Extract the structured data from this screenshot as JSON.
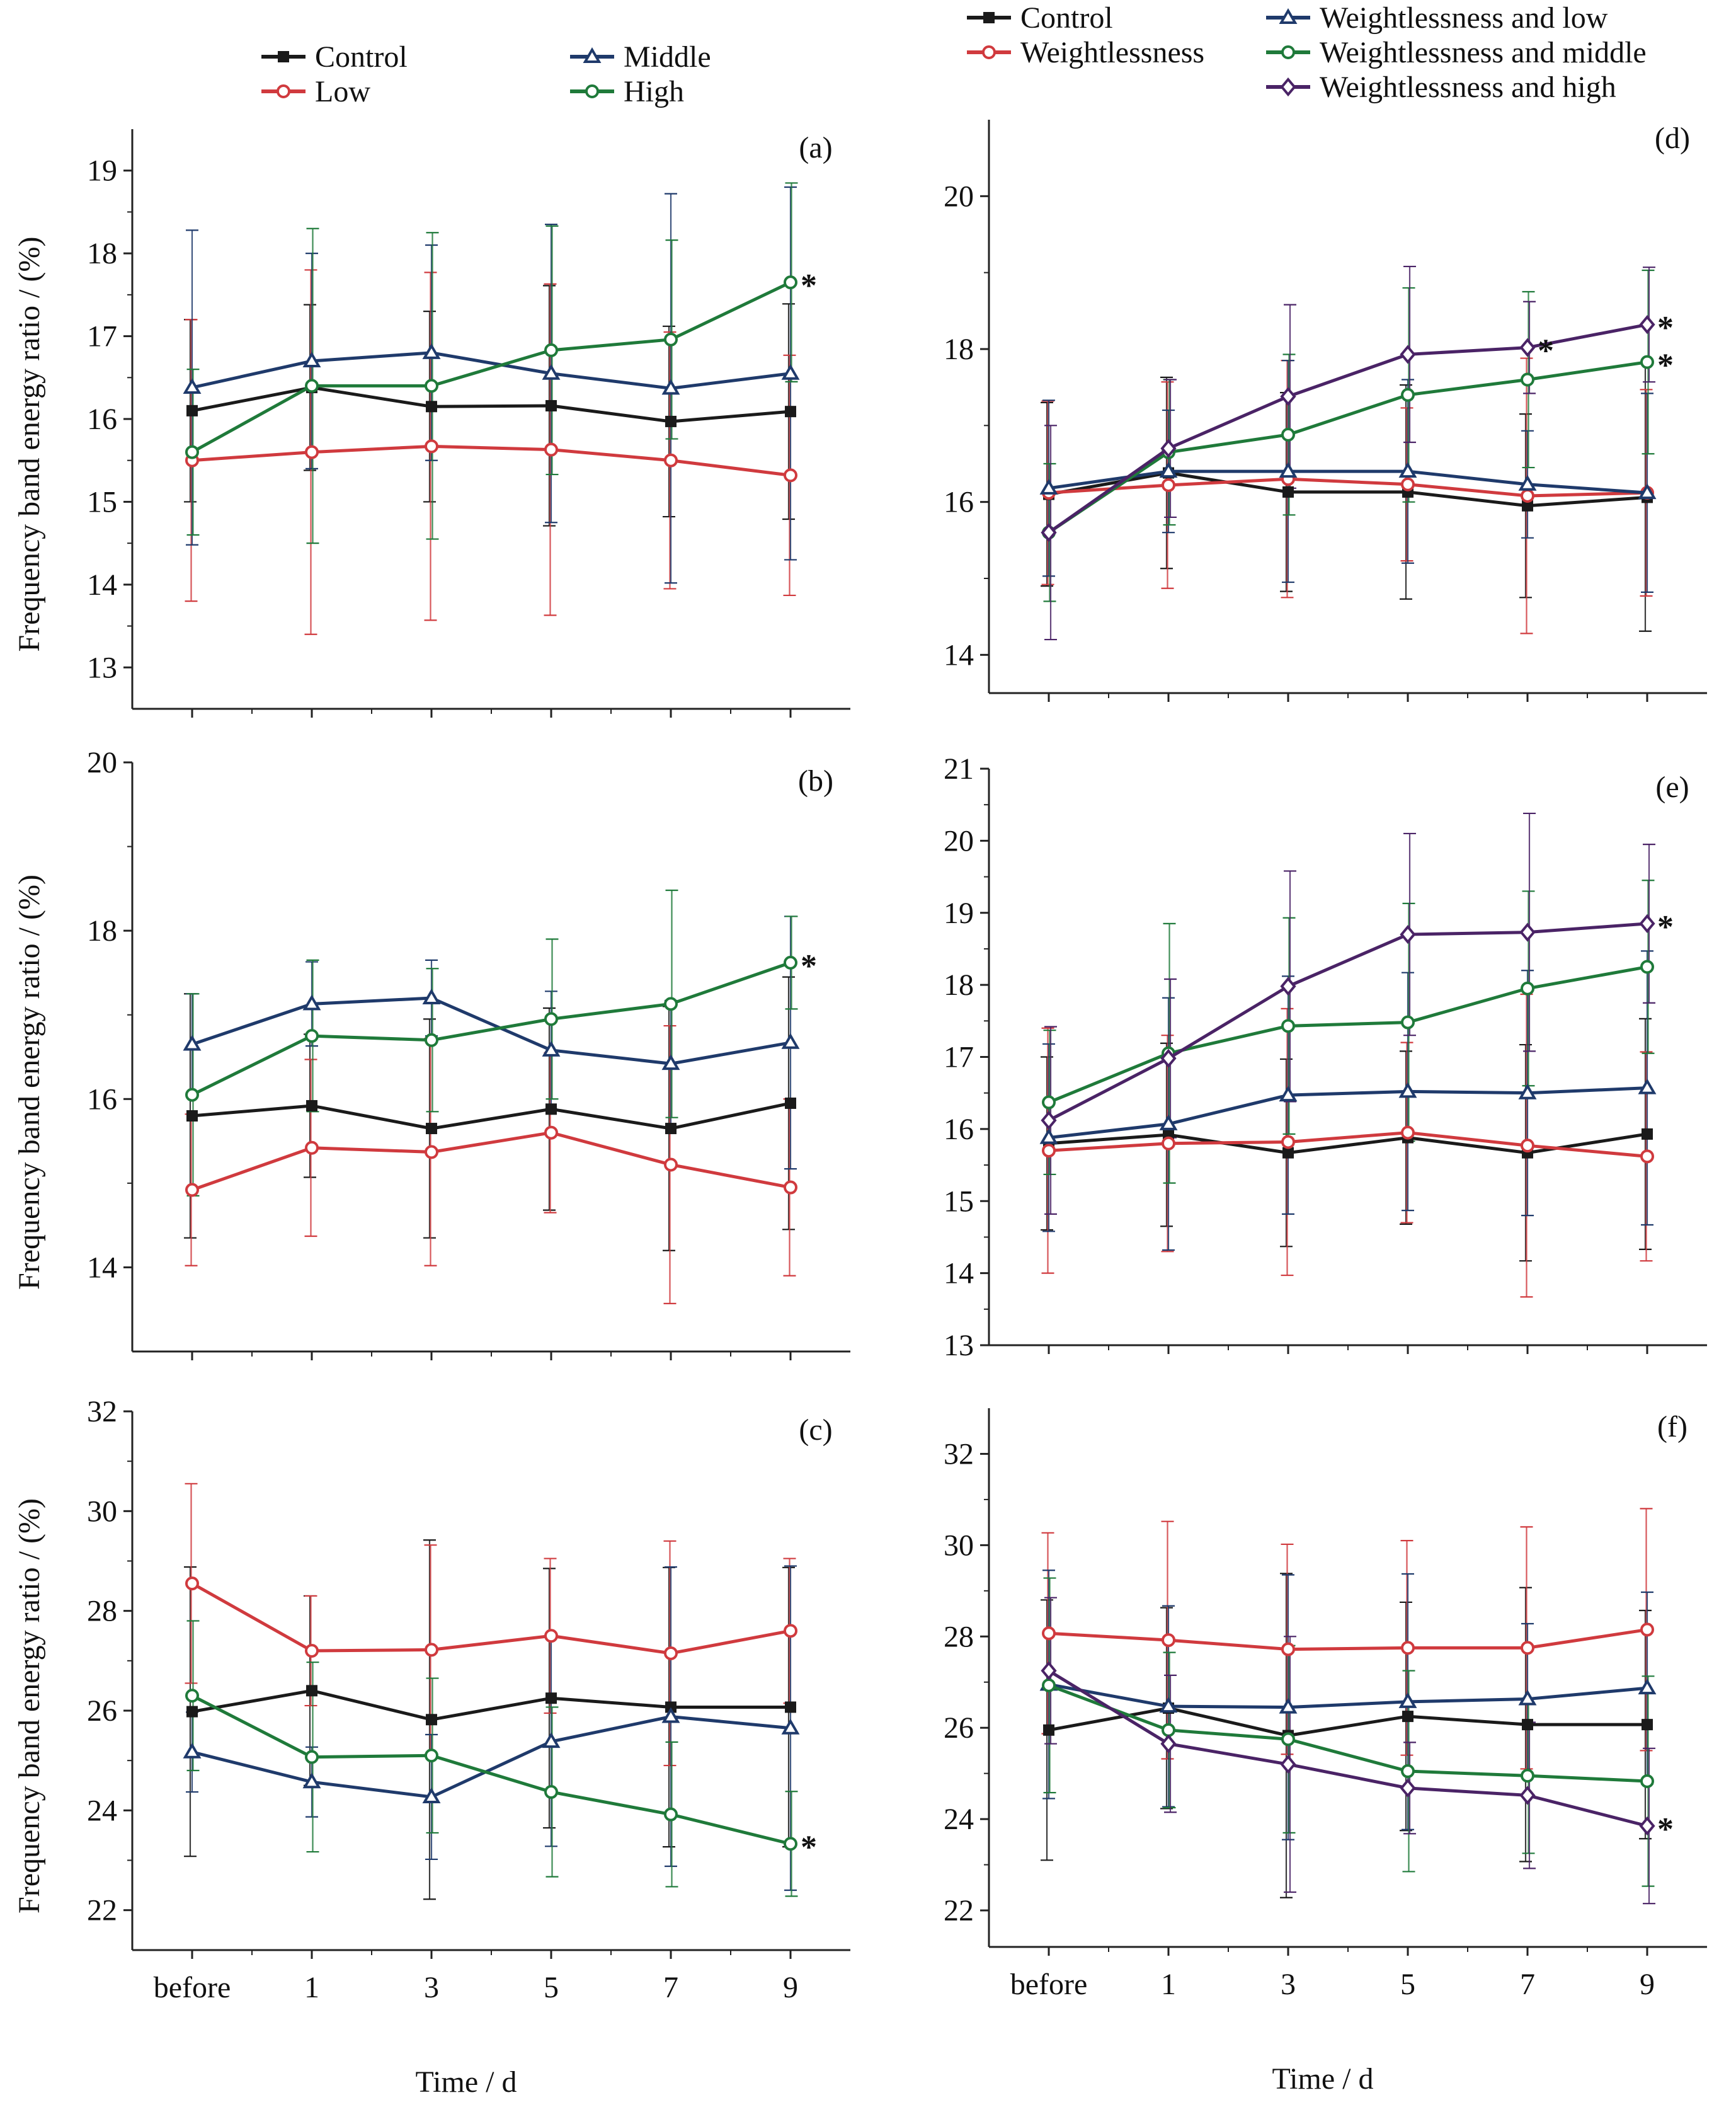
{
  "legend_left": {
    "entries": [
      {
        "label": "Control",
        "color": "#1a1a1a",
        "marker": "square"
      },
      {
        "label": "Low",
        "color": "#d03a3e",
        "marker": "circle"
      },
      {
        "label": "Middle",
        "color": "#1f3a6b",
        "marker": "triangle"
      },
      {
        "label": "High",
        "color": "#1f7a3a",
        "marker": "circle"
      }
    ]
  },
  "legend_right": {
    "entries": [
      {
        "label": "Control",
        "color": "#1a1a1a",
        "marker": "square"
      },
      {
        "label": "Weightlessness",
        "color": "#d03a3e",
        "marker": "circle"
      },
      {
        "label": "Weightlessness and low",
        "color": "#1f3a6b",
        "marker": "triangle"
      },
      {
        "label": "Weightlessness and middle",
        "color": "#1f7a3a",
        "marker": "circle"
      },
      {
        "label": "Weightlessness and high",
        "color": "#4a2366",
        "marker": "diamond"
      }
    ]
  },
  "chart_data": [
    {
      "panel": "(a)",
      "type": "line",
      "categories": [
        "before",
        "1",
        "3",
        "5",
        "7",
        "9"
      ],
      "ylabel": "Frequency band energy ratio / (%)",
      "ylim": [
        12.5,
        19.5
      ],
      "yticks": [
        13,
        14,
        15,
        16,
        17,
        18,
        19
      ],
      "series": [
        {
          "name": "Control",
          "values": [
            16.1,
            16.38,
            16.15,
            16.16,
            15.97,
            16.09
          ],
          "err": [
            1.1,
            1.0,
            1.15,
            1.45,
            1.15,
            1.3
          ]
        },
        {
          "name": "Low",
          "values": [
            15.5,
            15.6,
            15.67,
            15.63,
            15.5,
            15.32
          ],
          "err": [
            1.7,
            2.2,
            2.1,
            2.0,
            1.55,
            1.45
          ]
        },
        {
          "name": "Middle",
          "values": [
            16.38,
            16.7,
            16.8,
            16.55,
            16.37,
            16.55
          ],
          "err": [
            1.9,
            1.3,
            1.3,
            1.8,
            2.35,
            2.25
          ]
        },
        {
          "name": "High",
          "values": [
            15.6,
            16.4,
            16.4,
            16.83,
            16.96,
            17.65
          ],
          "err": [
            1.0,
            1.9,
            1.85,
            1.5,
            1.2,
            1.2
          ]
        }
      ],
      "asterisks": [
        {
          "series": "High",
          "category": "9"
        }
      ]
    },
    {
      "panel": "(b)",
      "type": "line",
      "categories": [
        "before",
        "1",
        "3",
        "5",
        "7",
        "9"
      ],
      "ylabel": "Frequency band energy ratio / (%)",
      "ylim": [
        13,
        20
      ],
      "yticks": [
        14,
        16,
        18,
        20
      ],
      "series": [
        {
          "name": "Control",
          "values": [
            15.8,
            15.92,
            15.65,
            15.88,
            15.65,
            15.95
          ],
          "err": [
            1.45,
            0.85,
            1.3,
            1.2,
            1.45,
            1.5
          ]
        },
        {
          "name": "Low",
          "values": [
            14.92,
            15.42,
            15.37,
            15.6,
            15.22,
            14.95
          ],
          "err": [
            0.9,
            1.05,
            1.35,
            0.95,
            1.65,
            1.05
          ]
        },
        {
          "name": "Middle",
          "values": [
            16.65,
            17.13,
            17.2,
            16.58,
            16.42,
            16.67
          ],
          "err": [
            0.6,
            0.5,
            0.45,
            0.7,
            0.75,
            1.5
          ]
        },
        {
          "name": "High",
          "values": [
            16.05,
            16.75,
            16.7,
            16.95,
            17.13,
            17.62
          ],
          "err": [
            1.2,
            0.9,
            0.85,
            0.95,
            1.35,
            0.55
          ]
        }
      ],
      "asterisks": [
        {
          "series": "High",
          "category": "9"
        }
      ]
    },
    {
      "panel": "(c)",
      "type": "line",
      "categories": [
        "before",
        "1",
        "3",
        "5",
        "7",
        "9"
      ],
      "xlabel": "Time / d",
      "ylabel": "Frequency band energy ratio / (%)",
      "ylim": [
        21.2,
        32
      ],
      "yticks": [
        22,
        24,
        26,
        28,
        30,
        32
      ],
      "series": [
        {
          "name": "Control",
          "values": [
            25.98,
            26.4,
            25.82,
            26.25,
            26.07,
            26.07
          ],
          "err": [
            2.9,
            1.9,
            3.6,
            2.6,
            2.8,
            2.8
          ]
        },
        {
          "name": "Low",
          "values": [
            28.55,
            27.2,
            27.22,
            27.5,
            27.15,
            27.6
          ],
          "err": [
            2.0,
            1.1,
            2.1,
            1.55,
            2.25,
            1.45
          ]
        },
        {
          "name": "Middle",
          "values": [
            25.17,
            24.57,
            24.27,
            25.38,
            25.88,
            25.65
          ],
          "err": [
            0.8,
            0.7,
            1.25,
            2.1,
            3.0,
            3.25
          ]
        },
        {
          "name": "High",
          "values": [
            26.3,
            25.07,
            25.1,
            24.37,
            23.92,
            23.33
          ],
          "err": [
            1.5,
            1.9,
            1.55,
            1.7,
            1.45,
            1.05
          ]
        }
      ],
      "asterisks": [
        {
          "series": "High",
          "category": "9"
        }
      ]
    },
    {
      "panel": "(d)",
      "type": "line",
      "categories": [
        "before",
        "1",
        "3",
        "5",
        "7",
        "9"
      ],
      "ylabel": "",
      "ylim": [
        13.5,
        21
      ],
      "yticks": [
        14,
        16,
        18,
        20
      ],
      "series": [
        {
          "name": "Control",
          "values": [
            16.1,
            16.38,
            16.13,
            16.13,
            15.95,
            16.06
          ],
          "err": [
            1.2,
            1.25,
            1.3,
            1.4,
            1.2,
            1.75
          ]
        },
        {
          "name": "Weightlessness",
          "values": [
            16.12,
            16.22,
            16.3,
            16.23,
            16.08,
            16.12
          ],
          "err": [
            1.2,
            1.35,
            1.55,
            1.0,
            1.8,
            1.35
          ]
        },
        {
          "name": "Weightlessness and low",
          "values": [
            16.18,
            16.4,
            16.4,
            16.4,
            16.23,
            16.12
          ],
          "err": [
            1.15,
            0.8,
            1.45,
            1.2,
            0.7,
            1.3
          ]
        },
        {
          "name": "Weightlessness and middle",
          "values": [
            15.6,
            16.65,
            16.88,
            17.4,
            17.6,
            17.83
          ],
          "err": [
            0.9,
            0.95,
            1.05,
            1.4,
            1.15,
            1.2
          ]
        },
        {
          "name": "Weightlessness and high",
          "values": [
            15.6,
            16.7,
            17.38,
            17.93,
            18.02,
            18.32
          ],
          "err": [
            1.4,
            0.9,
            1.2,
            1.15,
            0.6,
            0.75
          ]
        }
      ],
      "asterisks": [
        {
          "series": "Weightlessness and high",
          "category": "7"
        },
        {
          "series": "Weightlessness and high",
          "category": "9"
        },
        {
          "series": "Weightlessness and middle",
          "category": "9"
        }
      ]
    },
    {
      "panel": "(e)",
      "type": "line",
      "categories": [
        "before",
        "1",
        "3",
        "5",
        "7",
        "9"
      ],
      "ylabel": "",
      "ylim": [
        13,
        21
      ],
      "yticks": [
        13,
        14,
        15,
        16,
        17,
        18,
        19,
        20,
        21
      ],
      "series": [
        {
          "name": "Control",
          "values": [
            15.8,
            15.92,
            15.67,
            15.88,
            15.67,
            15.93
          ],
          "err": [
            1.2,
            1.27,
            1.3,
            1.2,
            1.5,
            1.6
          ]
        },
        {
          "name": "Weightlessness",
          "values": [
            15.7,
            15.8,
            15.82,
            15.95,
            15.77,
            15.62
          ],
          "err": [
            1.7,
            1.5,
            1.85,
            1.25,
            2.1,
            1.45
          ]
        },
        {
          "name": "Weightlessness and low",
          "values": [
            15.88,
            16.07,
            16.47,
            16.52,
            16.5,
            16.57
          ],
          "err": [
            1.3,
            1.75,
            1.65,
            1.65,
            1.7,
            1.9
          ]
        },
        {
          "name": "Weightlessness and middle",
          "values": [
            16.37,
            17.05,
            17.43,
            17.48,
            17.95,
            18.25
          ],
          "err": [
            1.0,
            1.8,
            1.5,
            1.65,
            1.35,
            1.2
          ]
        },
        {
          "name": "Weightlessness and high",
          "values": [
            16.12,
            16.98,
            17.98,
            18.7,
            18.73,
            18.85
          ],
          "err": [
            1.3,
            1.1,
            1.6,
            1.4,
            1.65,
            1.1
          ]
        }
      ],
      "asterisks": [
        {
          "series": "Weightlessness and high",
          "category": "9"
        }
      ]
    },
    {
      "panel": "(f)",
      "type": "line",
      "categories": [
        "before",
        "1",
        "3",
        "5",
        "7",
        "9"
      ],
      "xlabel": "Time / d",
      "ylabel": "",
      "ylim": [
        21.2,
        33
      ],
      "yticks": [
        22,
        24,
        26,
        28,
        30,
        32
      ],
      "series": [
        {
          "name": "Control",
          "values": [
            25.95,
            26.43,
            25.83,
            26.25,
            26.07,
            26.07
          ],
          "err": [
            2.85,
            2.2,
            3.55,
            2.5,
            3.0,
            2.5
          ]
        },
        {
          "name": "Weightlessness",
          "values": [
            28.07,
            27.92,
            27.72,
            27.75,
            27.75,
            28.15
          ],
          "err": [
            2.2,
            2.6,
            2.3,
            2.35,
            2.65,
            2.65
          ]
        },
        {
          "name": "Weightlessness and low",
          "values": [
            26.95,
            26.47,
            26.45,
            26.57,
            26.63,
            26.87
          ],
          "err": [
            2.5,
            2.2,
            2.9,
            2.8,
            1.65,
            2.1
          ]
        },
        {
          "name": "Weightlessness and middle",
          "values": [
            26.93,
            25.95,
            25.75,
            25.05,
            24.95,
            24.83
          ],
          "err": [
            2.35,
            1.7,
            2.05,
            2.2,
            1.7,
            2.3
          ]
        },
        {
          "name": "Weightlessness and high",
          "values": [
            27.25,
            25.65,
            25.2,
            24.68,
            24.52,
            23.85
          ],
          "err": [
            1.6,
            1.5,
            2.8,
            1.0,
            1.6,
            1.7
          ]
        }
      ],
      "asterisks": [
        {
          "series": "Weightlessness and high",
          "category": "9"
        }
      ]
    }
  ]
}
